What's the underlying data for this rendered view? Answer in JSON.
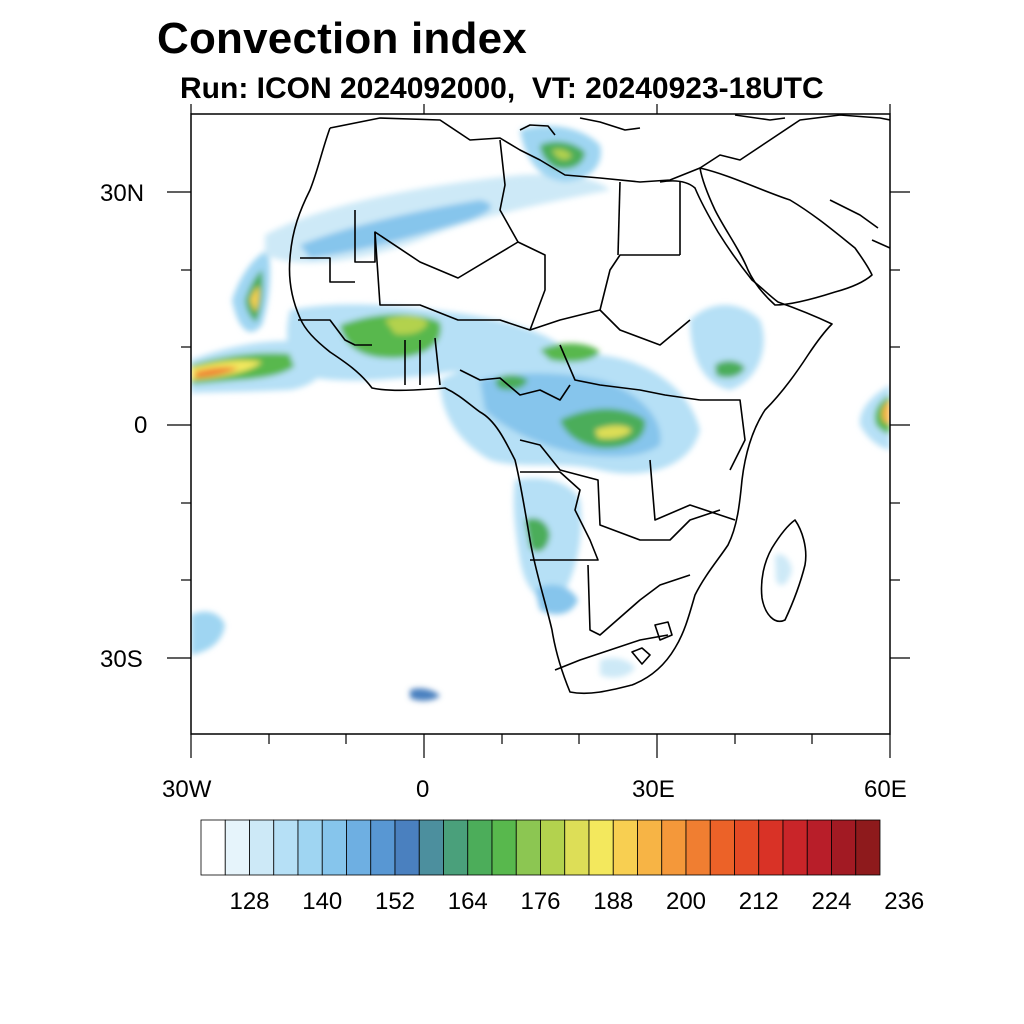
{
  "title": "Convection index",
  "subtitle": "Run: ICON 2024092000,  VT: 20240923-18UTC",
  "lat_labels": [
    "30N",
    "0",
    "30S"
  ],
  "lon_labels": [
    "30W",
    "0",
    "30E",
    "60E"
  ],
  "colorbar": {
    "tick_labels": [
      "128",
      "140",
      "152",
      "164",
      "176",
      "188",
      "200",
      "212",
      "224",
      "236"
    ],
    "colors": [
      "#ffffff",
      "#e6f4fb",
      "#cde9f7",
      "#b6e0f6",
      "#9fd5f2",
      "#86c5ec",
      "#6eafe2",
      "#5897d3",
      "#4a80bf",
      "#4c8f9e",
      "#4aa07b",
      "#4cad5a",
      "#58b84d",
      "#8cc652",
      "#b3d24e",
      "#ddde57",
      "#f3e85d",
      "#f8cf51",
      "#f7b445",
      "#f4983a",
      "#f07e31",
      "#ec6228",
      "#e44a25",
      "#d93226",
      "#c92529",
      "#b81e29",
      "#a21a23",
      "#8e1a1c"
    ]
  }
}
